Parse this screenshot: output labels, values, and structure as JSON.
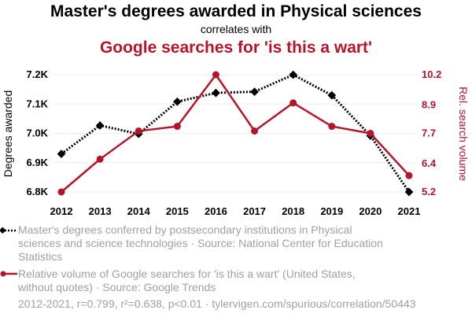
{
  "chart_data": {
    "type": "line",
    "title": "Master's degrees awarded in Physical sciences",
    "subtitle": "correlates with",
    "title2": "Google searches for 'is this a wart'",
    "x": [
      "2012",
      "2013",
      "2014",
      "2015",
      "2016",
      "2017",
      "2018",
      "2019",
      "2020",
      "2021"
    ],
    "ylabel_left": "Degrees awarded",
    "ylabel_right": "Rel. search volume",
    "left_axis": {
      "min": 6800,
      "max": 7200,
      "ticks": [
        6800,
        6900,
        7000,
        7100,
        7200
      ],
      "tick_labels": [
        "6.8K",
        "6.9K",
        "7.0K",
        "7.1K",
        "7.2K"
      ]
    },
    "right_axis": {
      "min": 5.2,
      "max": 10.2,
      "ticks": [
        5.2,
        6.4,
        7.7,
        8.9,
        10.2
      ],
      "tick_labels": [
        "5.2",
        "6.4",
        "7.7",
        "8.9",
        "10.2"
      ]
    },
    "series": [
      {
        "name": "Master's degrees conferred by postsecondary institutions in Physical sciences and science technologies · Source: National Center for Education Statistics",
        "axis": "left",
        "color": "#000000",
        "style": "dotted",
        "marker": "diamond",
        "values": [
          6930,
          7027,
          6998,
          7108,
          7138,
          7142,
          7200,
          7130,
          6992,
          6800
        ]
      },
      {
        "name": "Relative volume of Google searches for 'is this a wart' (United States, without quotes) · Source: Google Trends",
        "axis": "right",
        "color": "#b5152b",
        "style": "solid",
        "marker": "circle",
        "values": [
          5.2,
          6.6,
          7.8,
          8.0,
          10.2,
          7.8,
          9.0,
          8.0,
          7.7,
          5.9
        ]
      }
    ],
    "footer": "2012-2021, r=0.799, r²=0.638, p<0.01 · tylervigen.com/spurious/correlation/50443"
  }
}
